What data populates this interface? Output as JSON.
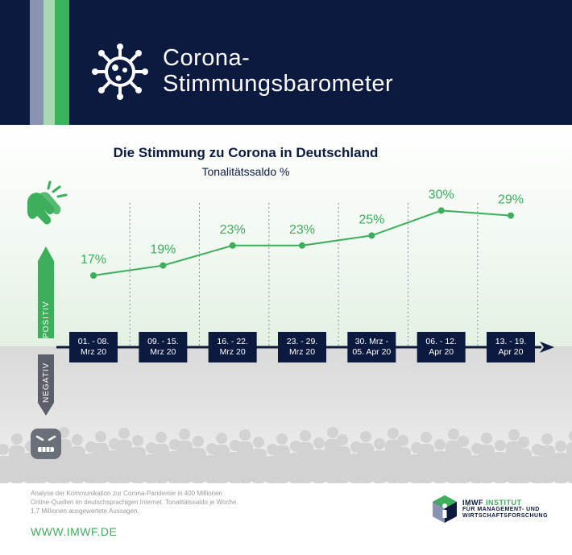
{
  "header": {
    "title_line1": "Corona-",
    "title_line2": "Stimmungsbarometer",
    "stripe_colors": [
      "#8b93b3",
      "#a8d8b4",
      "#39b45a"
    ]
  },
  "chart_data": {
    "type": "line",
    "title": "Die Stimmung zu Corona in Deutschland",
    "subtitle": "Tonalitätssaldo %",
    "categories": [
      [
        "01. - 08.",
        "Mrz 20"
      ],
      [
        "09. - 15.",
        "Mrz 20"
      ],
      [
        "16. - 22.",
        "Mrz 20"
      ],
      [
        "23. - 29.",
        "Mrz 20"
      ],
      [
        "30. Mrz -",
        "05. Apr 20"
      ],
      [
        "06. - 12.",
        "Apr 20"
      ],
      [
        "13. - 19.",
        "Apr 20"
      ]
    ],
    "values": [
      17,
      19,
      23,
      23,
      25,
      30,
      29
    ],
    "value_labels": [
      "17%",
      "19%",
      "23%",
      "23%",
      "25%",
      "30%",
      "29%"
    ],
    "positive_label": "POSITIV",
    "negative_label": "NEGATIV",
    "line_color": "#3cae5c",
    "box_color": "#0c1a40"
  },
  "footer": {
    "note_lines": [
      "Analyse der Kommunikation zur Corona-Pandemie in 400 Millionen",
      "Online-Quellen im deutschsprachigen Internet. Tonalitätssaldo je Woche.",
      "1,7 Millionen ausgewertete Aussagen."
    ],
    "url": "WWW.IMWF.DE",
    "logo_brand": "IMWF",
    "logo_institut": "INSTITUT",
    "logo_line2": "FÜR MANAGEMENT- UND",
    "logo_line3": "WIRTSCHAFTSFORSCHUNG"
  }
}
